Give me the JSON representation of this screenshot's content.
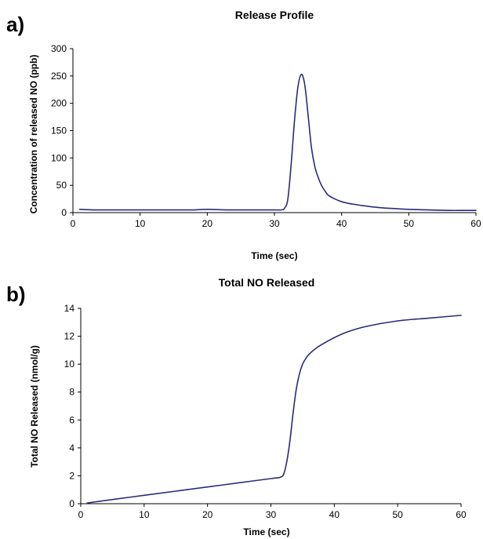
{
  "colors": {
    "series": "#2b2b7c",
    "axis": "#000000",
    "text": "#000000"
  },
  "chart_data": [
    {
      "panel_label": "a)",
      "type": "line",
      "title": "Release Profile",
      "xlabel": "Time (sec)",
      "ylabel": "Concentration of released NO (ppb)",
      "xlim": [
        0,
        60
      ],
      "ylim": [
        0,
        300
      ],
      "xticks": [
        0,
        10,
        20,
        30,
        40,
        50,
        60
      ],
      "yticks": [
        0,
        50,
        100,
        150,
        200,
        250,
        300
      ],
      "grid": false,
      "legend": "none",
      "series": [
        {
          "color": "#2b2b7c",
          "x": [
            1,
            3,
            5,
            8,
            10,
            13,
            16,
            18,
            20,
            23,
            26,
            28,
            30,
            31,
            31.5,
            32,
            32.5,
            33,
            33.5,
            34,
            34.5,
            35,
            35.5,
            36,
            36.5,
            37,
            37.5,
            38,
            39,
            40,
            41,
            42,
            43,
            45,
            47,
            50,
            53,
            56,
            58,
            60
          ],
          "y": [
            6,
            5,
            5,
            5,
            5,
            5,
            5,
            5,
            6,
            5,
            5,
            5,
            5,
            5,
            8,
            25,
            90,
            170,
            230,
            253,
            235,
            180,
            120,
            85,
            65,
            50,
            40,
            32,
            25,
            20,
            17,
            15,
            13,
            10,
            8,
            6,
            5,
            4,
            4,
            4
          ]
        }
      ]
    },
    {
      "panel_label": "b)",
      "type": "line",
      "title": "Total NO Released",
      "xlabel": "Time (sec)",
      "ylabel": "Total NO Released (nmol/g)",
      "xlim": [
        0,
        60
      ],
      "ylim": [
        0,
        14
      ],
      "xticks": [
        0,
        10,
        20,
        30,
        40,
        50,
        60
      ],
      "yticks": [
        0,
        2,
        4,
        6,
        8,
        10,
        12,
        14
      ],
      "grid": false,
      "legend": "none",
      "series": [
        {
          "color": "#2b2b7c",
          "x": [
            1,
            5,
            10,
            15,
            20,
            25,
            30,
            31,
            31.5,
            32,
            32.5,
            33,
            33.5,
            34,
            34.5,
            35,
            35.5,
            36,
            37,
            38,
            40,
            42,
            45,
            50,
            55,
            60
          ],
          "y": [
            0.05,
            0.3,
            0.6,
            0.9,
            1.2,
            1.5,
            1.8,
            1.85,
            1.9,
            2.1,
            3.0,
            4.5,
            6.5,
            8.2,
            9.3,
            10.0,
            10.4,
            10.7,
            11.1,
            11.4,
            11.9,
            12.3,
            12.7,
            13.1,
            13.3,
            13.5
          ]
        }
      ]
    }
  ]
}
